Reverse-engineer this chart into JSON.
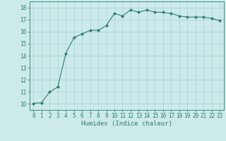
{
  "x": [
    0,
    1,
    2,
    3,
    4,
    5,
    6,
    7,
    8,
    9,
    10,
    11,
    12,
    13,
    14,
    15,
    16,
    17,
    18,
    19,
    20,
    21,
    22,
    23
  ],
  "y": [
    10.05,
    10.1,
    11.0,
    11.4,
    14.2,
    15.5,
    15.8,
    16.1,
    16.1,
    16.5,
    17.5,
    17.3,
    17.8,
    17.6,
    17.8,
    17.6,
    17.6,
    17.5,
    17.3,
    17.2,
    17.2,
    17.2,
    17.1,
    16.9
  ],
  "line_color": "#2e7d6e",
  "marker": "D",
  "marker_size": 2.2,
  "bg_color": "#cceaea",
  "grid_color": "#a8d4d4",
  "xlabel": "Humidex (Indice chaleur)",
  "xlim": [
    -0.5,
    23.5
  ],
  "ylim": [
    9.5,
    18.5
  ],
  "xticks": [
    0,
    1,
    2,
    3,
    4,
    5,
    6,
    7,
    8,
    9,
    10,
    11,
    12,
    13,
    14,
    15,
    16,
    17,
    18,
    19,
    20,
    21,
    22,
    23
  ],
  "yticks": [
    10,
    11,
    12,
    13,
    14,
    15,
    16,
    17,
    18
  ],
  "tick_label_fontsize": 5.5,
  "xlabel_fontsize": 6.5,
  "axis_color": "#2e7d6e",
  "tick_color": "#2e7d6e",
  "spine_color": "#2e7d6e"
}
